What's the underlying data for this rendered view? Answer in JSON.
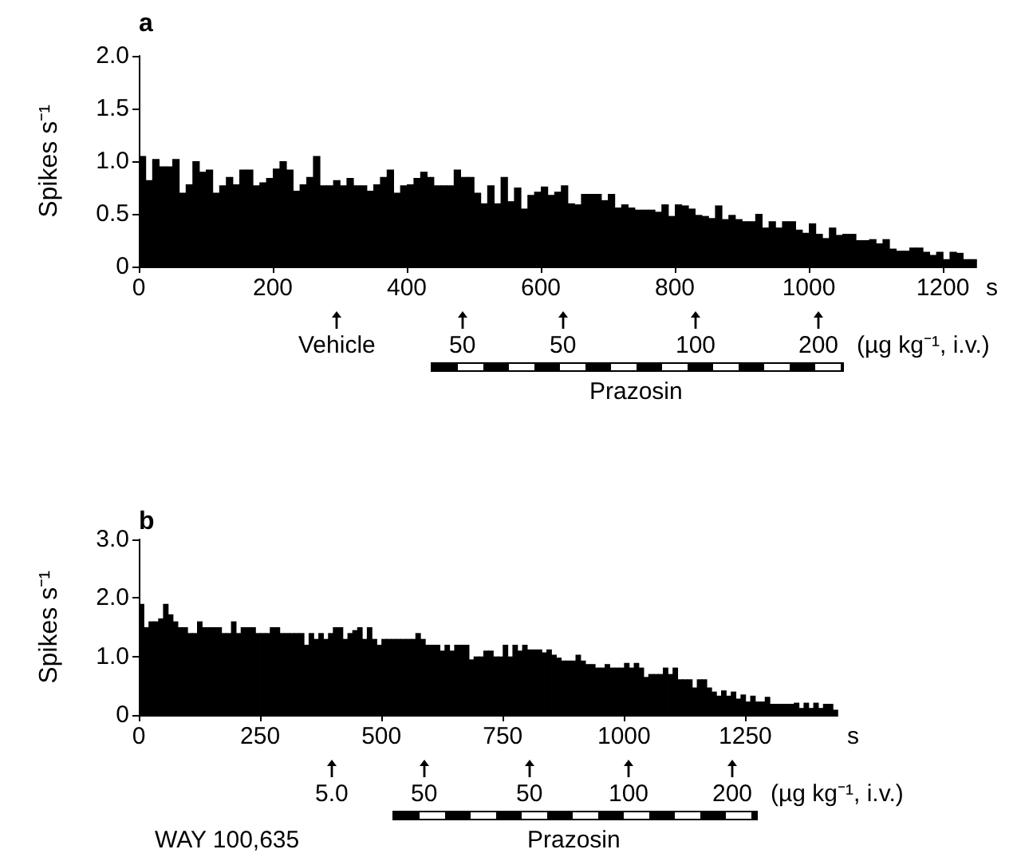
{
  "chart_data": [
    {
      "type": "histogram",
      "title": "a",
      "xlabel": "s",
      "ylabel": "Spikes s⁻¹",
      "color": "#000000",
      "bins": [
        0,
        10,
        20,
        30,
        40,
        50,
        60,
        70,
        80,
        90,
        100,
        110,
        120,
        130,
        140,
        150,
        160,
        170,
        180,
        190,
        200,
        210,
        220,
        230,
        240,
        250,
        260,
        270,
        280,
        290,
        300,
        310,
        320,
        330,
        340,
        350,
        360,
        370,
        380,
        390,
        400,
        410,
        420,
        430,
        440,
        450,
        460,
        470,
        480,
        490,
        500,
        510,
        520,
        530,
        540,
        550,
        560,
        570,
        580,
        590,
        600,
        610,
        620,
        630,
        640,
        650,
        660,
        670,
        680,
        690,
        700,
        710,
        720,
        730,
        740,
        750,
        760,
        770,
        780,
        790,
        800,
        810,
        820,
        830,
        840,
        850,
        860,
        870,
        880,
        890,
        900,
        910,
        920,
        930,
        940,
        950,
        960,
        970,
        980,
        990,
        1000,
        1010,
        1020,
        1030,
        1040,
        1050,
        1060,
        1070,
        1080,
        1090,
        1100,
        1110,
        1120,
        1130,
        1140,
        1150,
        1160,
        1170,
        1180,
        1190,
        1200,
        1210,
        1220,
        1230,
        1240,
        1250
      ],
      "values": [
        1.05,
        0.82,
        1.02,
        0.95,
        0.95,
        1.02,
        0.7,
        0.78,
        1.0,
        0.9,
        0.92,
        0.7,
        0.77,
        0.85,
        0.78,
        0.92,
        0.92,
        0.77,
        0.8,
        0.84,
        0.93,
        1.0,
        0.92,
        0.72,
        0.78,
        0.85,
        1.05,
        0.77,
        0.77,
        0.82,
        0.77,
        0.84,
        0.77,
        0.77,
        0.72,
        0.78,
        0.85,
        0.92,
        0.7,
        0.77,
        0.78,
        0.84,
        0.9,
        0.85,
        0.77,
        0.77,
        0.77,
        0.92,
        0.85,
        0.85,
        0.7,
        0.6,
        0.77,
        0.6,
        0.85,
        0.62,
        0.75,
        0.55,
        0.68,
        0.71,
        0.76,
        0.68,
        0.71,
        0.77,
        0.6,
        0.59,
        0.69,
        0.69,
        0.69,
        0.63,
        0.69,
        0.56,
        0.59,
        0.56,
        0.54,
        0.54,
        0.54,
        0.52,
        0.59,
        0.48,
        0.59,
        0.58,
        0.55,
        0.49,
        0.48,
        0.46,
        0.58,
        0.45,
        0.49,
        0.45,
        0.43,
        0.43,
        0.5,
        0.37,
        0.43,
        0.37,
        0.43,
        0.43,
        0.35,
        0.32,
        0.41,
        0.31,
        0.27,
        0.37,
        0.3,
        0.31,
        0.31,
        0.25,
        0.25,
        0.26,
        0.22,
        0.26,
        0.17,
        0.15,
        0.15,
        0.18,
        0.18,
        0.14,
        0.11,
        0.14,
        0.07,
        0.14,
        0.13,
        0.07,
        0.07
      ],
      "xlim": [
        0,
        1250
      ],
      "xticks": [
        0,
        200,
        400,
        600,
        800,
        1000,
        1200
      ],
      "ylim": [
        0,
        2
      ],
      "yticks": [
        0,
        {
          "value": 0.5,
          "label": "0.5"
        },
        {
          "value": 1,
          "label": "1.0"
        },
        {
          "value": 1.5,
          "label": "1.5"
        },
        {
          "value": 2,
          "label": "2.0"
        }
      ],
      "annotations": [
        "Vehicle",
        "50",
        "50",
        "100",
        "200",
        "Prazosin",
        "(µg kg⁻¹, i.v.)"
      ]
    },
    {
      "type": "histogram",
      "title": "b",
      "xlabel": "s",
      "ylabel": "Spikes s⁻¹",
      "color": "#000000",
      "bins": [
        0,
        10,
        20,
        30,
        40,
        50,
        60,
        70,
        80,
        90,
        100,
        110,
        120,
        130,
        140,
        150,
        160,
        170,
        180,
        190,
        200,
        210,
        220,
        230,
        240,
        250,
        260,
        270,
        280,
        290,
        300,
        310,
        320,
        330,
        340,
        350,
        360,
        370,
        380,
        390,
        400,
        410,
        420,
        430,
        440,
        450,
        460,
        470,
        480,
        490,
        500,
        510,
        520,
        530,
        540,
        550,
        560,
        570,
        580,
        590,
        600,
        610,
        620,
        630,
        640,
        650,
        660,
        670,
        680,
        690,
        700,
        710,
        720,
        730,
        740,
        750,
        760,
        770,
        780,
        790,
        800,
        810,
        820,
        830,
        840,
        850,
        860,
        870,
        880,
        890,
        900,
        910,
        920,
        930,
        940,
        950,
        960,
        970,
        980,
        990,
        1000,
        1010,
        1020,
        1030,
        1040,
        1050,
        1060,
        1070,
        1080,
        1090,
        1100,
        1110,
        1120,
        1130,
        1140,
        1150,
        1160,
        1170,
        1180,
        1190,
        1200,
        1210,
        1220,
        1230,
        1240,
        1250,
        1260,
        1270,
        1280,
        1290,
        1300,
        1310,
        1320,
        1330,
        1340,
        1350,
        1360,
        1370,
        1380,
        1390,
        1400,
        1410,
        1420,
        1430,
        1440
      ],
      "values": [
        1.9,
        1.5,
        1.6,
        1.6,
        1.65,
        1.9,
        1.72,
        1.6,
        1.5,
        1.5,
        1.4,
        1.4,
        1.6,
        1.5,
        1.5,
        1.5,
        1.5,
        1.4,
        1.4,
        1.6,
        1.4,
        1.5,
        1.5,
        1.5,
        1.4,
        1.4,
        1.4,
        1.5,
        1.5,
        1.4,
        1.4,
        1.4,
        1.4,
        1.4,
        1.2,
        1.4,
        1.3,
        1.4,
        1.3,
        1.4,
        1.5,
        1.5,
        1.3,
        1.4,
        1.45,
        1.5,
        1.3,
        1.5,
        1.3,
        1.2,
        1.3,
        1.3,
        1.3,
        1.3,
        1.3,
        1.3,
        1.3,
        1.4,
        1.3,
        1.2,
        1.2,
        1.2,
        1.1,
        1.2,
        1.1,
        1.2,
        1.2,
        1.2,
        0.95,
        1.0,
        1.0,
        1.1,
        1.1,
        1.0,
        1.0,
        1.2,
        1.0,
        1.2,
        1.1,
        1.2,
        1.12,
        1.12,
        1.12,
        1.07,
        1.12,
        1.03,
        0.98,
        0.93,
        0.93,
        0.93,
        1.03,
        0.93,
        0.87,
        0.87,
        0.81,
        0.81,
        0.87,
        0.81,
        0.81,
        0.81,
        0.89,
        0.81,
        0.89,
        0.81,
        0.65,
        0.7,
        0.7,
        0.7,
        0.81,
        0.7,
        0.81,
        0.61,
        0.61,
        0.61,
        0.47,
        0.61,
        0.61,
        0.47,
        0.4,
        0.33,
        0.42,
        0.33,
        0.4,
        0.28,
        0.35,
        0.23,
        0.33,
        0.23,
        0.23,
        0.31,
        0.19,
        0.19,
        0.19,
        0.19,
        0.19,
        0.21,
        0.12,
        0.21,
        0.12,
        0.21,
        0.12,
        0.19,
        0.19,
        0.09
      ],
      "xlim": [
        0,
        1440
      ],
      "xticks": [
        0,
        250,
        500,
        750,
        1000,
        1250
      ],
      "ylim": [
        0,
        3
      ],
      "yticks": [
        0,
        {
          "value": 1,
          "label": "1.0"
        },
        {
          "value": 2,
          "label": "2.0"
        },
        {
          "value": 3,
          "label": "3.0"
        }
      ],
      "annotations": [
        "5.0",
        "50",
        "50",
        "100",
        "200",
        "WAY 100,635",
        "Prazosin",
        "(µg kg⁻¹, i.v.)"
      ]
    }
  ]
}
